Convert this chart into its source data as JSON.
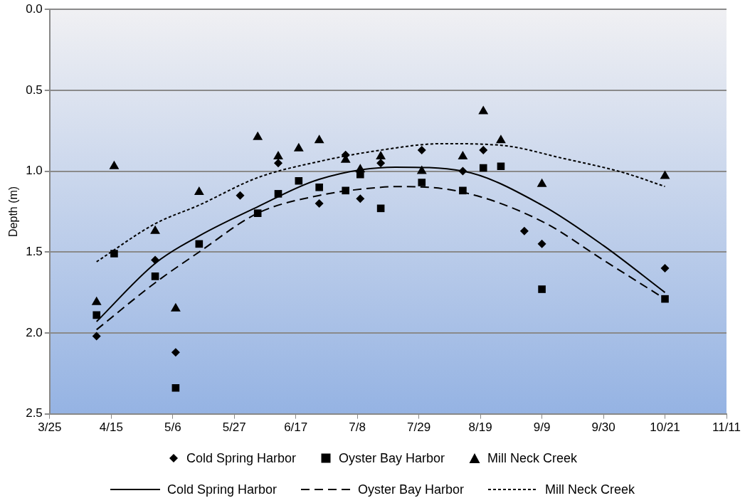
{
  "chart_data": {
    "type": "scatter",
    "ylabel": "Depth (m)",
    "xlim": [
      "--03-25",
      "--11-11"
    ],
    "xticks": [
      {
        "value": "--03-25",
        "label": "3/25"
      },
      {
        "value": "--04-15",
        "label": "4/15"
      },
      {
        "value": "--05-06",
        "label": "5/6"
      },
      {
        "value": "--05-27",
        "label": "5/27"
      },
      {
        "value": "--06-17",
        "label": "6/17"
      },
      {
        "value": "--07-08",
        "label": "7/8"
      },
      {
        "value": "--07-29",
        "label": "7/29"
      },
      {
        "value": "--08-19",
        "label": "8/19"
      },
      {
        "value": "--09-09",
        "label": "9/9"
      },
      {
        "value": "--09-30",
        "label": "9/30"
      },
      {
        "value": "--10-21",
        "label": "10/21"
      },
      {
        "value": "--11-11",
        "label": "11/11"
      }
    ],
    "ylim": [
      2.5,
      0
    ],
    "yticks": [
      {
        "value": 0,
        "label": "0.0"
      },
      {
        "value": 0.5,
        "label": "0.5"
      },
      {
        "value": 1,
        "label": "1.0"
      },
      {
        "value": 1.5,
        "label": "1.5"
      },
      {
        "value": 2,
        "label": "2.0"
      },
      {
        "value": 2.5,
        "label": "2.5"
      }
    ],
    "grid": "y",
    "legend": "bottom",
    "series": [
      {
        "name": "Cold Spring Harbor",
        "type": "scatter",
        "marker": "diamond",
        "color": "#000000",
        "x": [
          "--04-10",
          "--04-30",
          "--05-07",
          "--05-29",
          "--06-11",
          "--06-25",
          "--07-04",
          "--07-09",
          "--07-16",
          "--07-30",
          "--08-13",
          "--08-20",
          "--09-03",
          "--09-09",
          "--10-21"
        ],
        "values": [
          2.02,
          1.55,
          2.12,
          1.15,
          0.95,
          1.2,
          0.9,
          1.17,
          0.95,
          0.87,
          1.0,
          0.87,
          1.37,
          1.45,
          1.6
        ]
      },
      {
        "name": "Oyster Bay Harbor",
        "type": "scatter",
        "marker": "square",
        "color": "#000000",
        "x": [
          "--04-10",
          "--04-16",
          "--04-30",
          "--05-07",
          "--05-15",
          "--06-04",
          "--06-11",
          "--06-18",
          "--06-25",
          "--07-04",
          "--07-09",
          "--07-16",
          "--07-30",
          "--08-13",
          "--08-20",
          "--08-26",
          "--09-09",
          "--10-21"
        ],
        "values": [
          1.89,
          1.51,
          1.65,
          2.34,
          1.45,
          1.26,
          1.14,
          1.06,
          1.1,
          1.12,
          1.02,
          1.23,
          1.07,
          1.12,
          0.98,
          0.97,
          1.73,
          1.79
        ]
      },
      {
        "name": "Mill Neck Creek",
        "type": "scatter",
        "marker": "triangle",
        "color": "#000000",
        "x": [
          "--04-10",
          "--04-16",
          "--04-30",
          "--05-07",
          "--05-15",
          "--06-04",
          "--06-11",
          "--06-18",
          "--06-25",
          "--07-04",
          "--07-09",
          "--07-16",
          "--07-30",
          "--08-13",
          "--08-20",
          "--08-26",
          "--09-09",
          "--10-21"
        ],
        "values": [
          1.81,
          0.97,
          1.37,
          1.85,
          1.13,
          0.79,
          0.91,
          0.86,
          0.81,
          0.93,
          0.99,
          0.91,
          1.0,
          0.91,
          0.63,
          0.81,
          1.08,
          1.03
        ]
      },
      {
        "name": "Cold Spring Harbor",
        "type": "line",
        "line_style": "solid",
        "marker": "none",
        "color": "#000000",
        "x": [
          "--04-10",
          "--04-30",
          "--05-15",
          "--06-04",
          "--06-25",
          "--07-21",
          "--08-13",
          "--09-09",
          "--09-30",
          "--10-21"
        ],
        "values": [
          1.93,
          1.57,
          1.4,
          1.22,
          1.05,
          0.975,
          1.0,
          1.21,
          1.46,
          1.75
        ]
      },
      {
        "name": "Oyster Bay Harbor",
        "type": "line",
        "line_style": "dashed",
        "marker": "none",
        "color": "#000000",
        "x": [
          "--04-10",
          "--04-30",
          "--05-15",
          "--06-04",
          "--06-25",
          "--07-16",
          "--07-23",
          "--08-13",
          "--09-09",
          "--09-30",
          "--10-21"
        ],
        "values": [
          1.98,
          1.69,
          1.5,
          1.26,
          1.15,
          1.1,
          1.095,
          1.13,
          1.31,
          1.55,
          1.79
        ]
      },
      {
        "name": "Mill Neck Creek",
        "type": "line",
        "line_style": "dotted",
        "marker": "none",
        "color": "#000000",
        "x": [
          "--04-10",
          "--04-30",
          "--05-15",
          "--06-04",
          "--06-25",
          "--07-16",
          "--08-06",
          "--08-26",
          "--09-16",
          "--10-07",
          "--10-21"
        ],
        "values": [
          1.56,
          1.325,
          1.21,
          1.04,
          0.94,
          0.87,
          0.83,
          0.84,
          0.92,
          1.01,
          1.095
        ]
      }
    ]
  }
}
